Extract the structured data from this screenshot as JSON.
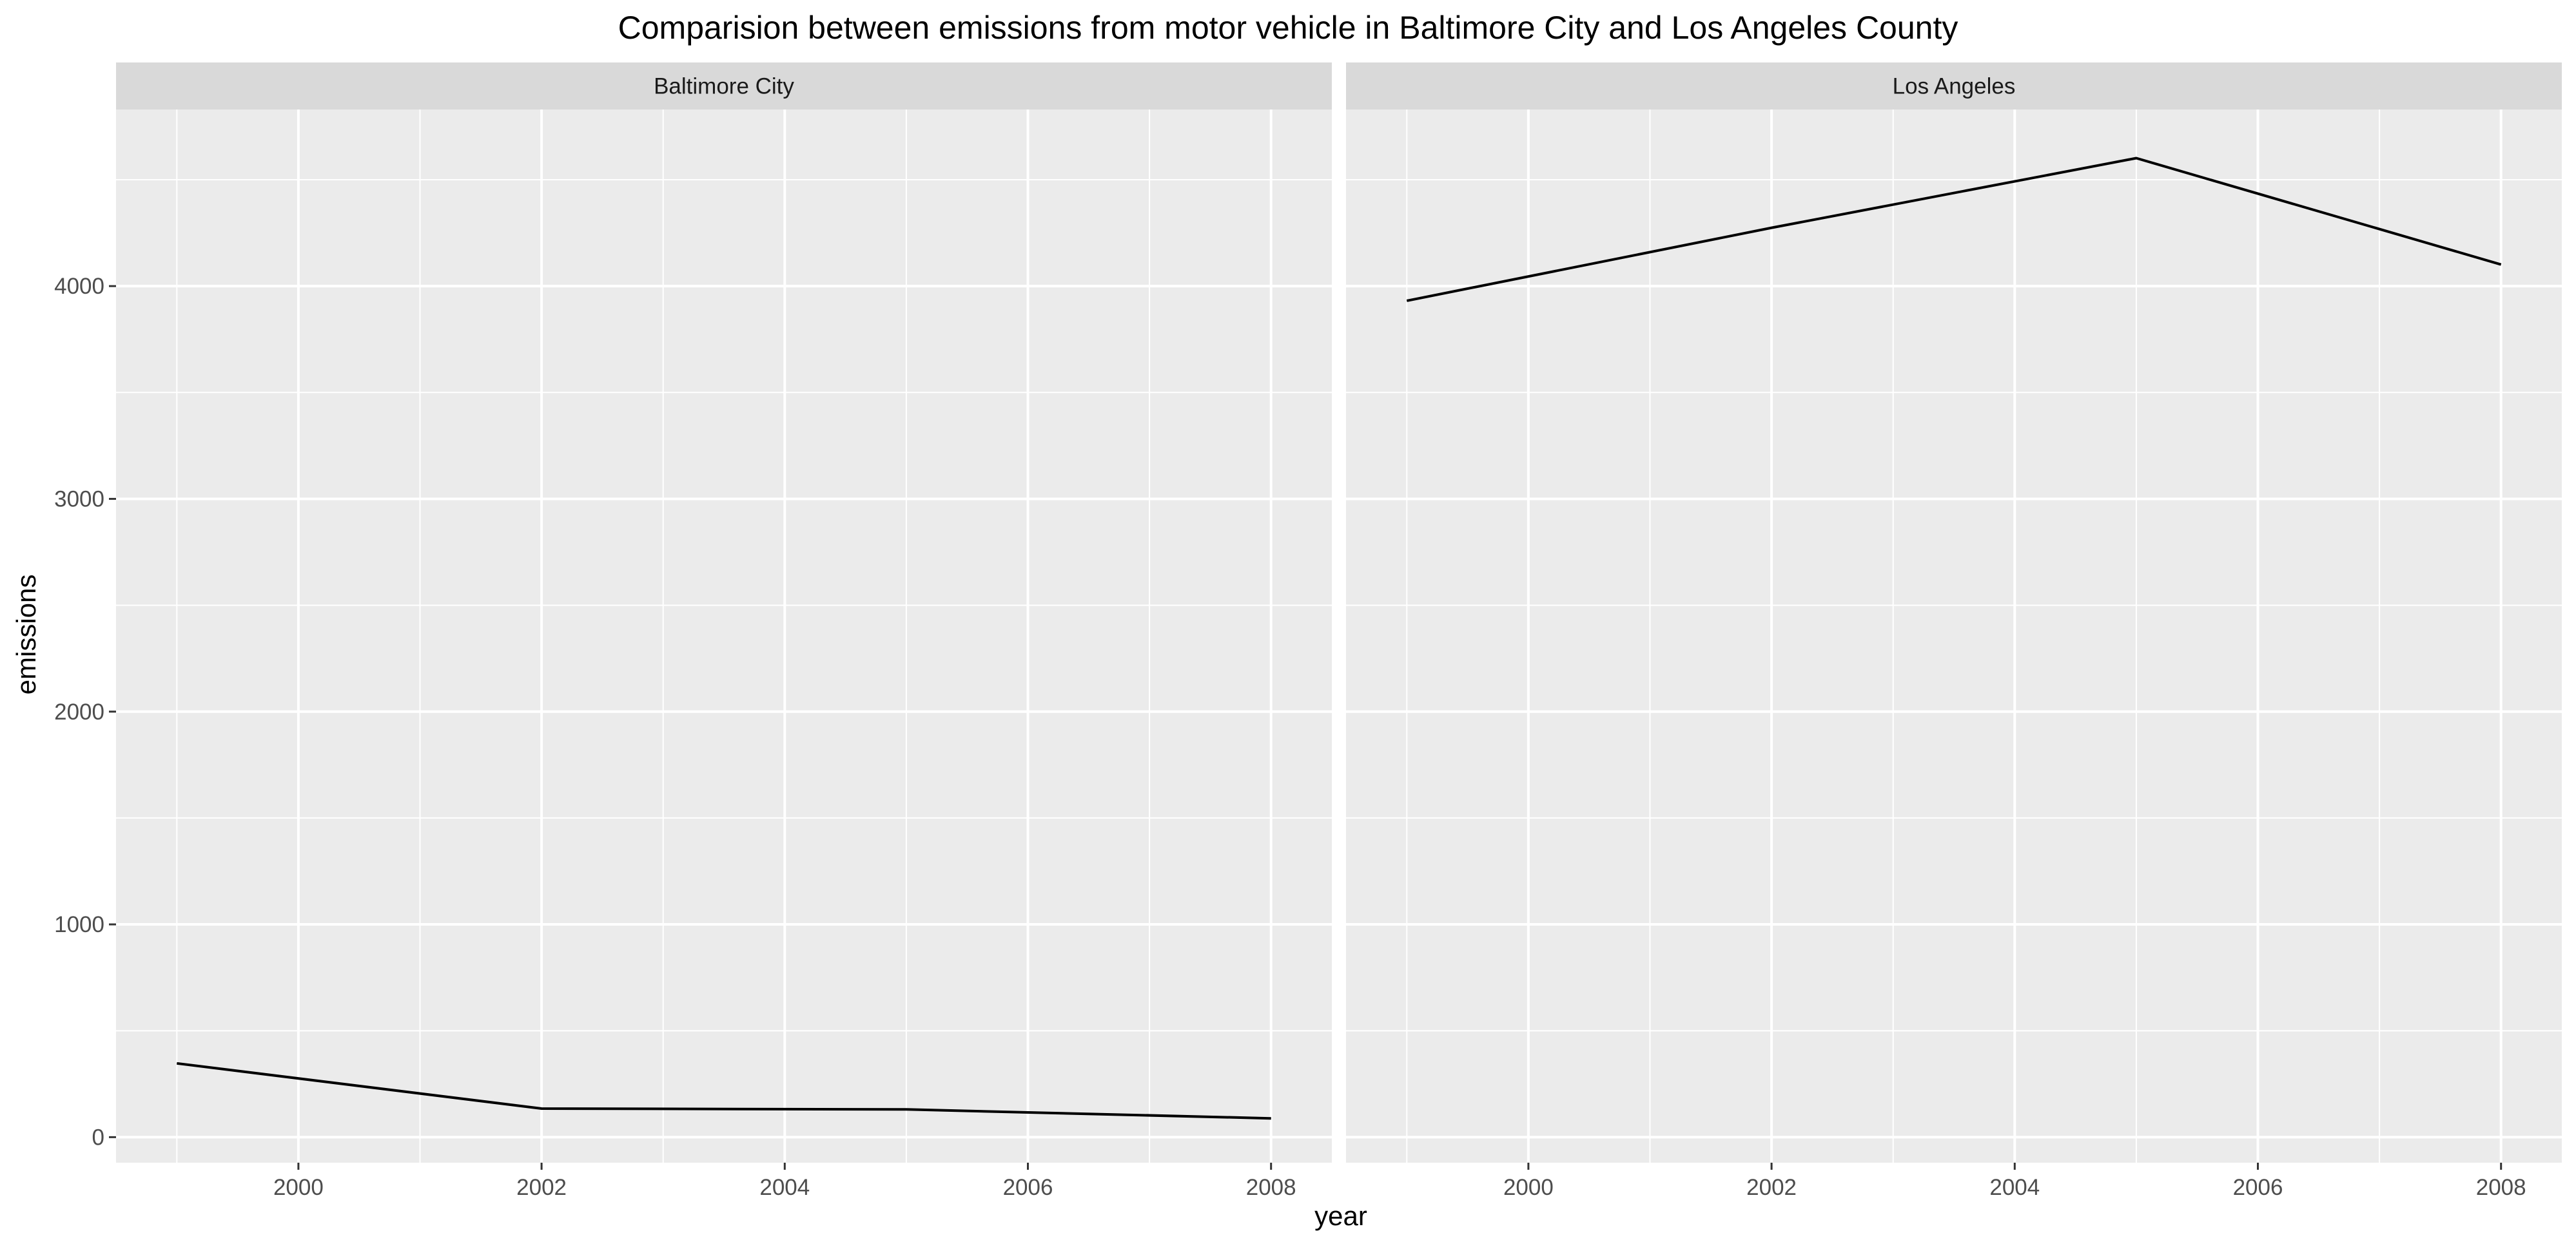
{
  "chart_data": {
    "type": "line",
    "title": "Comparision between emissions from motor vehicle in Baltimore City and Los Angeles County",
    "xlabel": "year",
    "ylabel": "emissions",
    "xlim": [
      1998.5,
      2008.5
    ],
    "ylim": [
      -120,
      4830
    ],
    "x_ticks": [
      2000,
      2002,
      2004,
      2006,
      2008
    ],
    "y_ticks": [
      0,
      1000,
      2000,
      3000,
      4000
    ],
    "grid": true,
    "colors": {
      "panel_background": "#ebebeb",
      "strip_background": "#d9d9d9",
      "grid": "#ffffff",
      "line": "#000000",
      "tick_label": "#4d4d4d"
    },
    "facets": [
      {
        "strip": "Baltimore City",
        "x": [
          1999,
          2002,
          2005,
          2008
        ],
        "y": [
          346.8,
          134.3,
          130.4,
          88.3
        ]
      },
      {
        "strip": "Los Angeles",
        "x": [
          1999,
          2002,
          2005,
          2008
        ],
        "y": [
          3931.1,
          4274.0,
          4601.4,
          4101.3
        ]
      }
    ]
  }
}
